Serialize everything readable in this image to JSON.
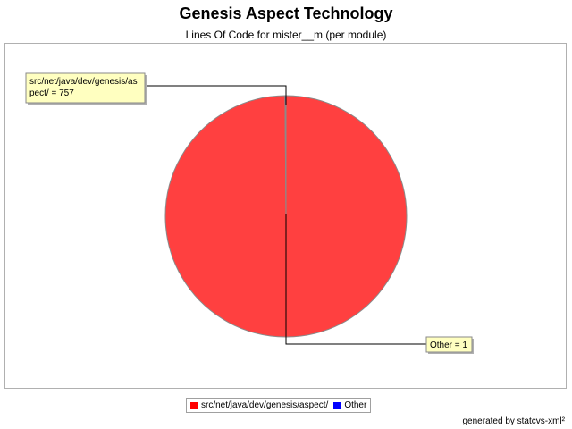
{
  "chart_data": {
    "type": "pie",
    "title": "Genesis Aspect Technology",
    "subtitle": "Lines Of Code for mister__m (per module)",
    "slices": [
      {
        "label": "src/net/java/dev/genesis/aspect/",
        "value": 757,
        "color": "#ff4040",
        "legend_color": "#ff0000",
        "label_lines": [
          "src/net/java/dev/genesis/as",
          "pect/ = 757"
        ]
      },
      {
        "label": "Other",
        "value": 1,
        "color": "#0000ff",
        "legend_color": "#0000ff",
        "label_lines": [
          "Other = 1"
        ]
      }
    ],
    "legend_position": "bottom"
  },
  "legend": [
    {
      "label": "src/net/java/dev/genesis/aspect/",
      "color": "#ff0000"
    },
    {
      "label": "Other",
      "color": "#0000ff"
    }
  ],
  "footer": "generated by statcvs-xml²"
}
